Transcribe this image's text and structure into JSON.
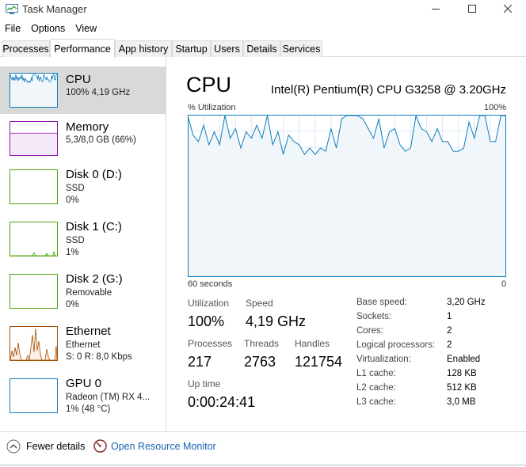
{
  "window": {
    "title": "Task Manager",
    "icons": {
      "app": "task-manager-icon",
      "minimize": "minimize-icon",
      "maximize": "maximize-icon",
      "close": "close-icon"
    }
  },
  "menu": {
    "items": [
      "File",
      "Options",
      "View"
    ]
  },
  "tabs": [
    {
      "label": "Processes"
    },
    {
      "label": "Performance",
      "active": true
    },
    {
      "label": "App history"
    },
    {
      "label": "Startup"
    },
    {
      "label": "Users"
    },
    {
      "label": "Details"
    },
    {
      "label": "Services"
    }
  ],
  "sidebar": {
    "items": [
      {
        "title": "CPU",
        "line1": "100%  4,19 GHz",
        "line2": "",
        "line3": "",
        "color": "#117dbb",
        "selected": true,
        "thumb": "cpu"
      },
      {
        "title": "Memory",
        "line1": "5,3/8,0 GB (66%)",
        "line2": "",
        "line3": "",
        "color": "#8b12ae",
        "selected": false,
        "thumb": "memory",
        "level": 0.66
      },
      {
        "title": "Disk 0 (D:)",
        "line1": "SSD",
        "line2": "0%",
        "line3": "",
        "color": "#4da60c",
        "selected": false,
        "thumb": "empty"
      },
      {
        "title": "Disk 1 (C:)",
        "line1": "SSD",
        "line2": "1%",
        "line3": "",
        "color": "#4da60c",
        "selected": false,
        "thumb": "disk1"
      },
      {
        "title": "Disk 2 (G:)",
        "line1": "Removable",
        "line2": "0%",
        "line3": "",
        "color": "#4da60c",
        "selected": false,
        "thumb": "empty"
      },
      {
        "title": "Ethernet",
        "line1": "Ethernet",
        "line2": "S: 0  R: 8,0 Kbps",
        "line3": "",
        "color": "#a74f01",
        "selected": false,
        "thumb": "ethernet"
      },
      {
        "title": "GPU 0",
        "line1": "Radeon (TM) RX 4...",
        "line2": "1% (48 °C)",
        "line3": "",
        "color": "#117dbb",
        "selected": false,
        "thumb": "empty"
      }
    ]
  },
  "main": {
    "heading": "CPU",
    "model": "Intel(R) Pentium(R) CPU G3258 @ 3.20GHz",
    "graph": {
      "y_label": "% Utilization",
      "y_max_label": "100%",
      "x_left_label": "60 seconds",
      "x_right_label": "0",
      "line_color": "#117dbb",
      "fill_color": "#f1f6fa",
      "grid_color": "#d9eaf4",
      "values": [
        100,
        88,
        84,
        94,
        82,
        90,
        82,
        100,
        86,
        92,
        80,
        90,
        86,
        94,
        86,
        100,
        82,
        90,
        76,
        88,
        84,
        82,
        76,
        80,
        76,
        80,
        78,
        92,
        80,
        98,
        100,
        100,
        100,
        98,
        92,
        86,
        98,
        80,
        90,
        92,
        82,
        78,
        80,
        100,
        92,
        90,
        84,
        92,
        84,
        84,
        78,
        78,
        80,
        96,
        86,
        100,
        100,
        84,
        84,
        100,
        100
      ]
    },
    "stats": {
      "utilization": {
        "label": "Utilization",
        "value": "100%"
      },
      "speed": {
        "label": "Speed",
        "value": "4,19 GHz"
      },
      "processes": {
        "label": "Processes",
        "value": "217"
      },
      "threads": {
        "label": "Threads",
        "value": "2763"
      },
      "handles": {
        "label": "Handles",
        "value": "121754"
      },
      "uptime": {
        "label": "Up time",
        "value": "0:00:24:41"
      }
    },
    "specs": [
      {
        "label": "Base speed:",
        "value": "3,20 GHz"
      },
      {
        "label": "Sockets:",
        "value": "1"
      },
      {
        "label": "Cores:",
        "value": "2"
      },
      {
        "label": "Logical processors:",
        "value": "2"
      },
      {
        "label": "Virtualization:",
        "value": "Enabled"
      },
      {
        "label": "L1 cache:",
        "value": "128 KB"
      },
      {
        "label": "L2 cache:",
        "value": "512 KB"
      },
      {
        "label": "L3 cache:",
        "value": "3,0 MB"
      }
    ]
  },
  "footer": {
    "fewer_details": "Fewer details",
    "open_resource_monitor": "Open Resource Monitor",
    "icons": {
      "fewer": "chevron-up-icon",
      "monitor": "resource-monitor-icon"
    }
  }
}
